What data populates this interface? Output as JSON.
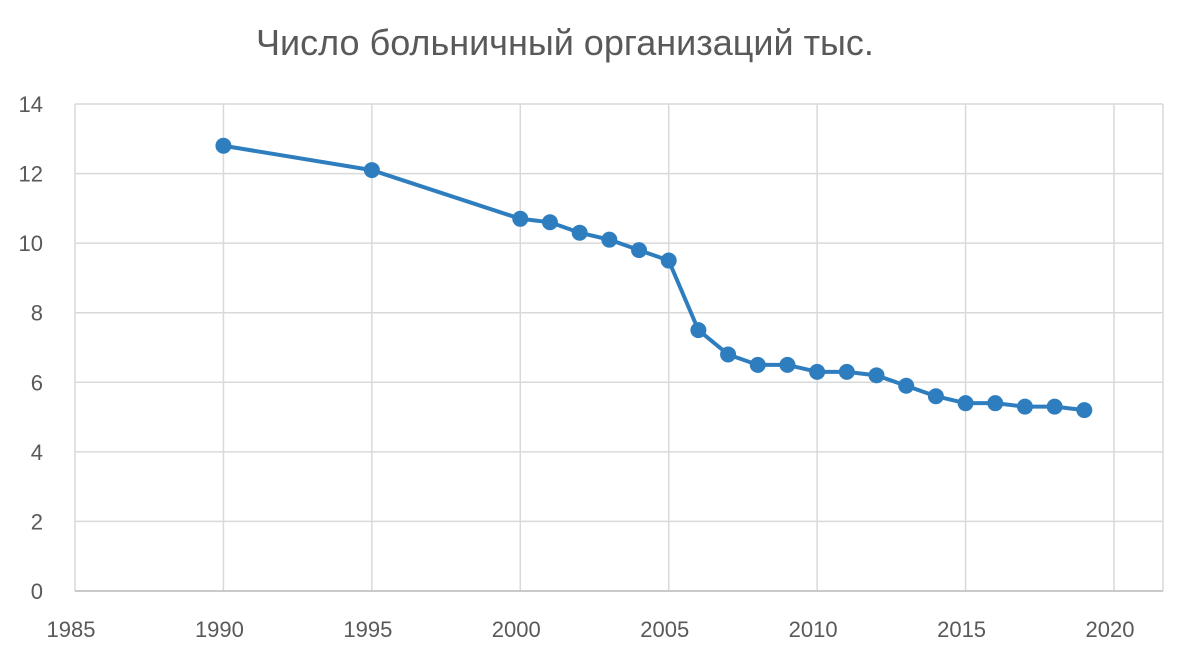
{
  "chart_data": {
    "type": "line",
    "title": "Число больничный организаций тыс.",
    "xlabel": "",
    "ylabel": "",
    "xlim": [
      1985,
      2020
    ],
    "ylim": [
      0,
      14
    ],
    "x_ticks": [
      1985,
      1990,
      1995,
      2000,
      2005,
      2010,
      2015,
      2020
    ],
    "y_ticks": [
      0,
      2,
      4,
      6,
      8,
      10,
      12,
      14
    ],
    "grid": true,
    "legend": "none",
    "series": [
      {
        "color": "#2E7EBF",
        "markers": true,
        "x": [
          1990,
          1995,
          2000,
          2001,
          2002,
          2003,
          2004,
          2005,
          2006,
          2007,
          2008,
          2009,
          2010,
          2011,
          2012,
          2013,
          2014,
          2015,
          2016,
          2017,
          2018,
          2019
        ],
        "y": [
          12.8,
          12.1,
          10.7,
          10.6,
          10.3,
          10.1,
          9.8,
          9.5,
          7.5,
          6.8,
          6.5,
          6.5,
          6.3,
          6.3,
          6.2,
          5.9,
          5.6,
          5.4,
          5.4,
          5.3,
          5.3,
          5.2
        ]
      }
    ]
  }
}
